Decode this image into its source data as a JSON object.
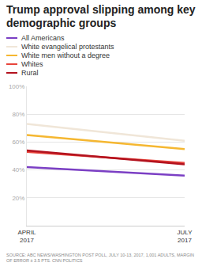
{
  "chart_data": {
    "type": "line",
    "title": "Trump approval slipping among key demographic groups",
    "categories": [
      "APRIL 2017",
      "JULY 2017"
    ],
    "series": [
      {
        "name": "All Americans",
        "color": "#7b3fc4",
        "values": [
          42,
          36
        ]
      },
      {
        "name": "White evangelical protestants",
        "color": "#f0e6d8",
        "values": [
          73,
          61
        ]
      },
      {
        "name": "White men without a degree",
        "color": "#f5b731",
        "values": [
          65,
          55
        ]
      },
      {
        "name": "Whites",
        "color": "#e8453c",
        "values": [
          53,
          45
        ]
      },
      {
        "name": "Rural",
        "color": "#b3121e",
        "values": [
          54,
          44
        ]
      }
    ],
    "ylim": [
      0,
      100
    ],
    "yticks": [
      {
        "value": 20,
        "label": "20%"
      },
      {
        "value": 40,
        "label": "40%"
      },
      {
        "value": 60,
        "label": "60%"
      },
      {
        "value": 80,
        "label": "80%"
      },
      {
        "value": 100,
        "label": "100%"
      }
    ],
    "grid": true,
    "source": "SOURCE: ABC NEWS/WASHINGTON POST POLL, JULY 10-13, 2017, 1,001 ADULTS, MARGIN OF ERROR ± 3.5 PTS. CNN POLITICS"
  }
}
